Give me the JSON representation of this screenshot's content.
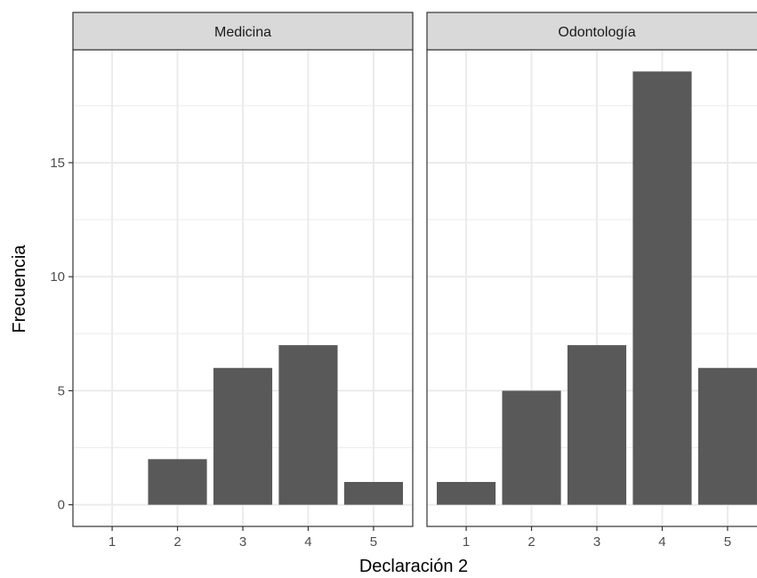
{
  "chart_data": {
    "type": "bar",
    "xlabel": "Declaración 2",
    "ylabel": "Frecuencia",
    "categories": [
      "1",
      "2",
      "3",
      "4",
      "5"
    ],
    "ylim": [
      -0.95,
      19.95
    ],
    "yticks": [
      0,
      5,
      10,
      15
    ],
    "grid": true,
    "colors": {
      "bar": "#595959",
      "strip": "#d9d9d9",
      "grid": "#ebebeb",
      "border": "#333333"
    },
    "panels": [
      {
        "name": "Medicina",
        "values": [
          0,
          2,
          6,
          7,
          1
        ]
      },
      {
        "name": "Odontología",
        "values": [
          1,
          5,
          7,
          19,
          6
        ]
      }
    ]
  }
}
